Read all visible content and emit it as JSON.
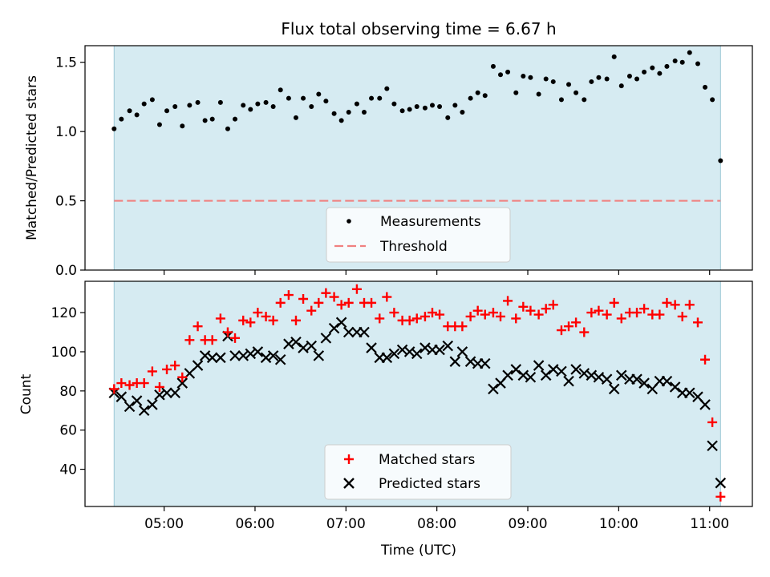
{
  "chart_data": [
    {
      "type": "scatter",
      "title": "Flux total observing time = 6.67 h",
      "ylabel": "Matched/Predicted stars",
      "ylim": [
        0,
        1.62
      ],
      "yticks": [
        0.0,
        0.5,
        1.0,
        1.5
      ],
      "ytick_labels": [
        "0.0",
        "0.5",
        "1.0",
        "1.5"
      ],
      "legend_position": "bottom-center",
      "shaded_span_color": "#add8e6",
      "x_unit": "hours since 00:00 UTC",
      "series": [
        {
          "name": "Measurements",
          "marker": "dot",
          "color": "#000000",
          "x": [
            4.45,
            4.53,
            4.62,
            4.7,
            4.78,
            4.87,
            4.95,
            5.03,
            5.12,
            5.2,
            5.28,
            5.37,
            5.45,
            5.53,
            5.62,
            5.7,
            5.78,
            5.87,
            5.95,
            6.03,
            6.12,
            6.2,
            6.28,
            6.37,
            6.45,
            6.53,
            6.62,
            6.7,
            6.78,
            6.87,
            6.95,
            7.03,
            7.12,
            7.2,
            7.28,
            7.37,
            7.45,
            7.53,
            7.62,
            7.7,
            7.78,
            7.87,
            7.95,
            8.03,
            8.12,
            8.2,
            8.28,
            8.37,
            8.45,
            8.53,
            8.62,
            8.7,
            8.78,
            8.87,
            8.95,
            9.03,
            9.12,
            9.2,
            9.28,
            9.37,
            9.45,
            9.53,
            9.62,
            9.7,
            9.78,
            9.87,
            9.95,
            10.03,
            10.12,
            10.2,
            10.28,
            10.37,
            10.45,
            10.53,
            10.62,
            10.7,
            10.78,
            10.87,
            10.95,
            11.03,
            11.12
          ],
          "y": [
            1.02,
            1.09,
            1.15,
            1.12,
            1.2,
            1.23,
            1.05,
            1.15,
            1.18,
            1.04,
            1.19,
            1.21,
            1.08,
            1.09,
            1.21,
            1.02,
            1.09,
            1.19,
            1.16,
            1.2,
            1.21,
            1.18,
            1.3,
            1.24,
            1.1,
            1.24,
            1.18,
            1.27,
            1.22,
            1.13,
            1.08,
            1.14,
            1.2,
            1.14,
            1.24,
            1.24,
            1.31,
            1.2,
            1.15,
            1.16,
            1.18,
            1.17,
            1.19,
            1.18,
            1.1,
            1.19,
            1.14,
            1.24,
            1.28,
            1.26,
            1.47,
            1.41,
            1.43,
            1.28,
            1.4,
            1.39,
            1.27,
            1.38,
            1.36,
            1.23,
            1.34,
            1.28,
            1.23,
            1.36,
            1.39,
            1.38,
            1.54,
            1.33,
            1.4,
            1.38,
            1.43,
            1.46,
            1.42,
            1.47,
            1.51,
            1.5,
            1.57,
            1.49,
            1.32,
            1.23,
            0.79
          ]
        },
        {
          "name": "Threshold",
          "marker": "dashed-line",
          "color": "#f08080",
          "y": 0.5
        }
      ]
    },
    {
      "type": "scatter",
      "xlabel": "Time (UTC)",
      "ylabel": "Count",
      "ylim": [
        21,
        136
      ],
      "yticks": [
        40,
        60,
        80,
        100,
        120
      ],
      "ytick_labels": [
        "40",
        "60",
        "80",
        "100",
        "120"
      ],
      "xlim": [
        4.13,
        11.47
      ],
      "xticks": [
        5,
        6,
        7,
        8,
        9,
        10,
        11
      ],
      "xtick_labels": [
        "05:00",
        "06:00",
        "07:00",
        "08:00",
        "09:00",
        "10:00",
        "11:00"
      ],
      "shaded_span": [
        4.45,
        11.12
      ],
      "shaded_span_color": "#add8e6",
      "legend_position": "bottom-center",
      "series": [
        {
          "name": "Matched stars",
          "marker": "plus",
          "color": "#ff0000",
          "x": [
            4.45,
            4.53,
            4.62,
            4.7,
            4.78,
            4.87,
            4.95,
            5.03,
            5.12,
            5.2,
            5.28,
            5.37,
            5.45,
            5.53,
            5.62,
            5.7,
            5.78,
            5.87,
            5.95,
            6.03,
            6.12,
            6.2,
            6.28,
            6.37,
            6.45,
            6.53,
            6.62,
            6.7,
            6.78,
            6.87,
            6.95,
            7.03,
            7.12,
            7.2,
            7.28,
            7.37,
            7.45,
            7.53,
            7.62,
            7.7,
            7.78,
            7.87,
            7.95,
            8.03,
            8.12,
            8.2,
            8.28,
            8.37,
            8.45,
            8.53,
            8.62,
            8.7,
            8.78,
            8.87,
            8.95,
            9.03,
            9.12,
            9.2,
            9.28,
            9.37,
            9.45,
            9.53,
            9.62,
            9.7,
            9.78,
            9.87,
            9.95,
            10.03,
            10.12,
            10.2,
            10.28,
            10.37,
            10.45,
            10.53,
            10.62,
            10.7,
            10.78,
            10.87,
            10.95,
            11.03,
            11.12
          ],
          "y": [
            81,
            84,
            83,
            84,
            84,
            90,
            82,
            91,
            93,
            87,
            106,
            113,
            106,
            106,
            117,
            110,
            107,
            116,
            115,
            120,
            118,
            116,
            125,
            129,
            116,
            127,
            121,
            125,
            130,
            128,
            124,
            125,
            132,
            125,
            125,
            117,
            128,
            120,
            116,
            116,
            117,
            118,
            120,
            119,
            113,
            113,
            113,
            118,
            121,
            119,
            120,
            118,
            126,
            117,
            123,
            121,
            119,
            122,
            124,
            111,
            113,
            115,
            110,
            120,
            121,
            119,
            125,
            117,
            120,
            120,
            122,
            119,
            119,
            125,
            124,
            118,
            124,
            115,
            96,
            64,
            26
          ]
        },
        {
          "name": "Predicted stars",
          "marker": "x",
          "color": "#000000",
          "x": [
            4.45,
            4.53,
            4.62,
            4.7,
            4.78,
            4.87,
            4.95,
            5.03,
            5.12,
            5.2,
            5.28,
            5.37,
            5.45,
            5.53,
            5.62,
            5.7,
            5.78,
            5.87,
            5.95,
            6.03,
            6.12,
            6.2,
            6.28,
            6.37,
            6.45,
            6.53,
            6.62,
            6.7,
            6.78,
            6.87,
            6.95,
            7.03,
            7.12,
            7.2,
            7.28,
            7.37,
            7.45,
            7.53,
            7.62,
            7.7,
            7.78,
            7.87,
            7.95,
            8.03,
            8.12,
            8.2,
            8.28,
            8.37,
            8.45,
            8.53,
            8.62,
            8.7,
            8.78,
            8.87,
            8.95,
            9.03,
            9.12,
            9.2,
            9.28,
            9.37,
            9.45,
            9.53,
            9.62,
            9.7,
            9.78,
            9.87,
            9.95,
            10.03,
            10.12,
            10.2,
            10.28,
            10.37,
            10.45,
            10.53,
            10.62,
            10.7,
            10.78,
            10.87,
            10.95,
            11.03,
            11.12
          ],
          "y": [
            79,
            77,
            72,
            75,
            70,
            73,
            78,
            79,
            79,
            84,
            89,
            93,
            98,
            97,
            97,
            108,
            98,
            98,
            99,
            100,
            97,
            98,
            96,
            104,
            105,
            102,
            103,
            98,
            107,
            112,
            115,
            110,
            110,
            110,
            102,
            97,
            97,
            99,
            101,
            100,
            99,
            102,
            101,
            101,
            103,
            95,
            100,
            95,
            94,
            94,
            81,
            84,
            88,
            91,
            88,
            87,
            93,
            88,
            91,
            90,
            85,
            91,
            89,
            88,
            87,
            86,
            81,
            88,
            86,
            86,
            84,
            81,
            85,
            85,
            82,
            79,
            79,
            77,
            73,
            52,
            33
          ]
        }
      ]
    }
  ]
}
